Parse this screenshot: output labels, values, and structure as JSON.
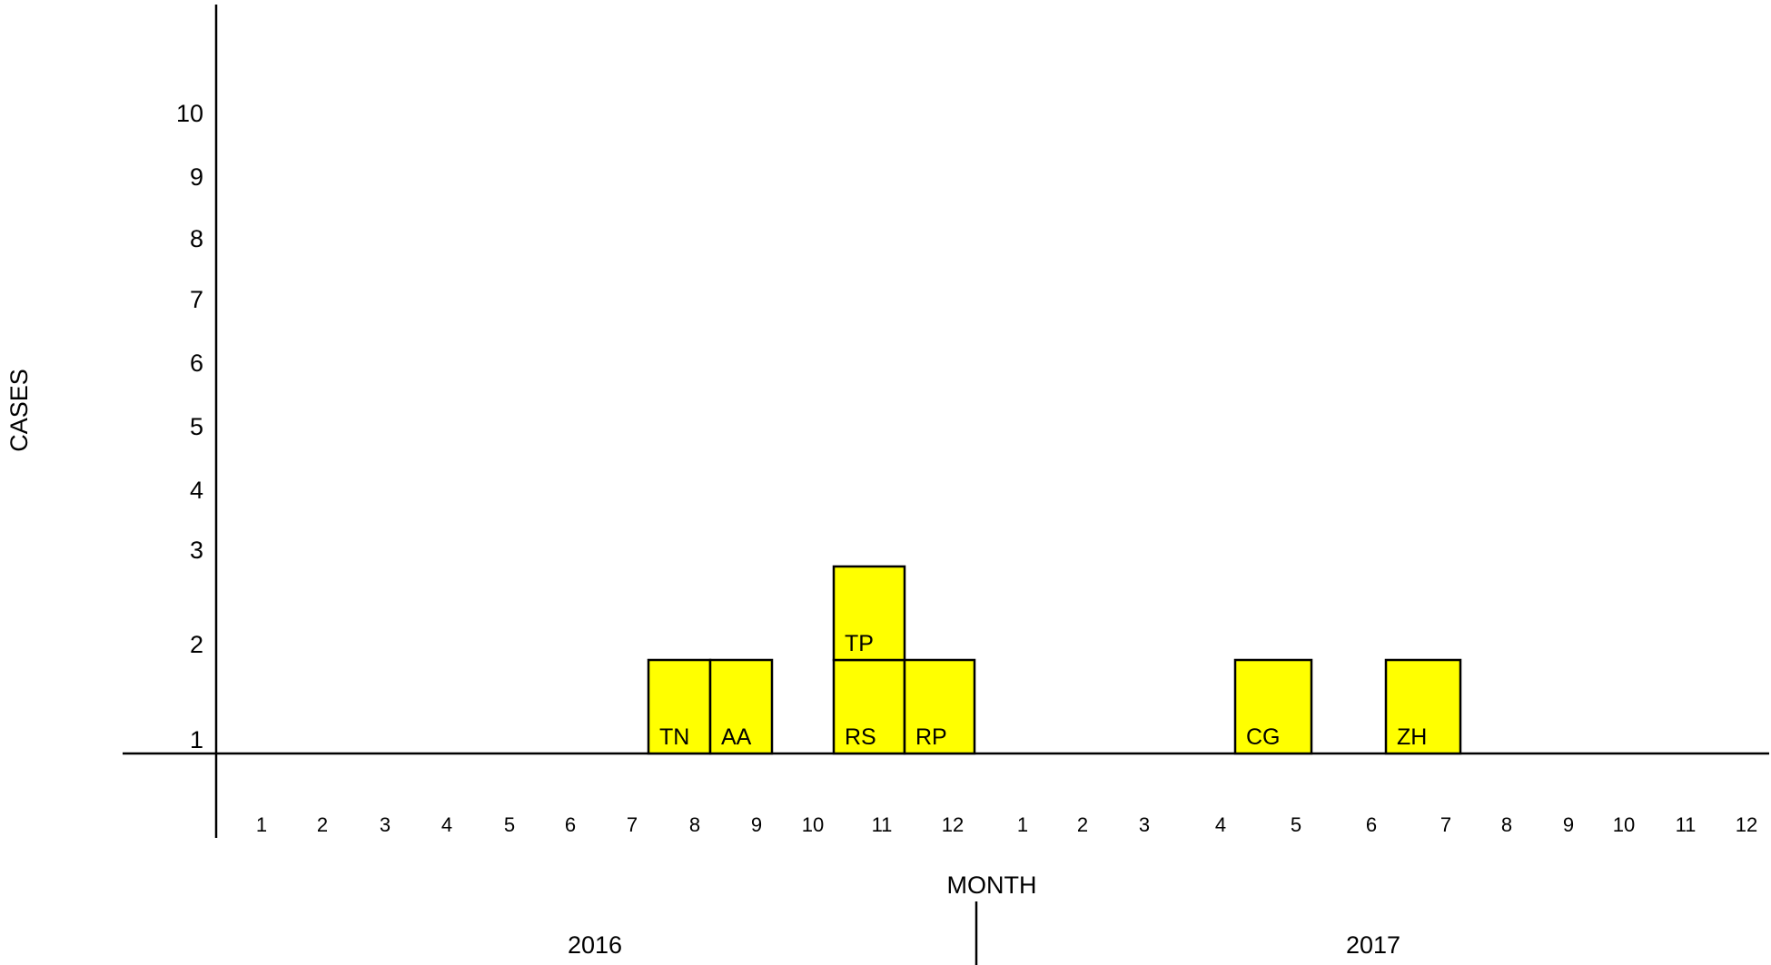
{
  "chart_data": {
    "type": "bar",
    "xlabel": "MONTH",
    "ylabel": "CASES",
    "ylim": [
      0,
      11
    ],
    "y_ticks": [
      "1",
      "2",
      "3",
      "4",
      "5",
      "6",
      "7",
      "8",
      "9",
      "10"
    ],
    "categories": [
      {
        "year": "2016",
        "month": "1"
      },
      {
        "year": "2016",
        "month": "2"
      },
      {
        "year": "2016",
        "month": "3"
      },
      {
        "year": "2016",
        "month": "4"
      },
      {
        "year": "2016",
        "month": "5"
      },
      {
        "year": "2016",
        "month": "6"
      },
      {
        "year": "2016",
        "month": "7"
      },
      {
        "year": "2016",
        "month": "8"
      },
      {
        "year": "2016",
        "month": "9"
      },
      {
        "year": "2016",
        "month": "10"
      },
      {
        "year": "2016",
        "month": "11"
      },
      {
        "year": "2016",
        "month": "12"
      },
      {
        "year": "2017",
        "month": "1"
      },
      {
        "year": "2017",
        "month": "2"
      },
      {
        "year": "2017",
        "month": "3"
      },
      {
        "year": "2017",
        "month": "4"
      },
      {
        "year": "2017",
        "month": "5"
      },
      {
        "year": "2017",
        "month": "6"
      },
      {
        "year": "2017",
        "month": "7"
      },
      {
        "year": "2017",
        "month": "8"
      },
      {
        "year": "2017",
        "month": "9"
      },
      {
        "year": "2017",
        "month": "10"
      },
      {
        "year": "2017",
        "month": "11"
      },
      {
        "year": "2017",
        "month": "12"
      }
    ],
    "values": [
      0,
      0,
      0,
      0,
      0,
      0,
      0,
      1,
      1,
      0,
      2,
      1,
      0,
      0,
      0,
      0,
      1,
      0,
      1,
      0,
      0,
      0,
      0,
      0
    ],
    "cases": [
      {
        "label": "TN",
        "year": "2016",
        "month": "8",
        "stack": 1
      },
      {
        "label": "AA",
        "year": "2016",
        "month": "9",
        "stack": 1
      },
      {
        "label": "RS",
        "year": "2016",
        "month": "11",
        "stack": 1
      },
      {
        "label": "TP",
        "year": "2016",
        "month": "11",
        "stack": 2
      },
      {
        "label": "RP",
        "year": "2016",
        "month": "12",
        "stack": 1
      },
      {
        "label": "CG",
        "year": "2017",
        "month": "5",
        "stack": 1
      },
      {
        "label": "ZH",
        "year": "2017",
        "month": "7",
        "stack": 1
      }
    ],
    "years": [
      "2016",
      "2017"
    ],
    "bar_color": "#ffff00",
    "grid": false,
    "legend": "none"
  }
}
